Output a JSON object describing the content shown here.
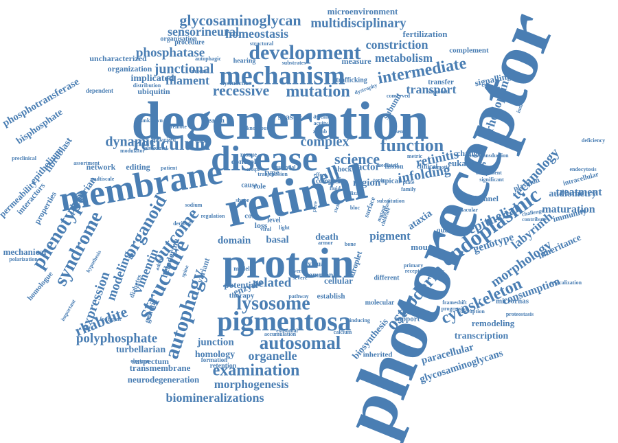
{
  "colors": {
    "word": "#4a7eb3",
    "background": "#ffffff"
  },
  "words": [
    "photoreceptor",
    "degeneration",
    "retinal",
    "protein",
    "membrane",
    "disease",
    "mechanism",
    "endoplasmic",
    "development",
    "pigmentosa",
    "cell",
    "autophagy",
    "structure",
    "lysosome",
    "syndrome",
    "phenotype",
    "cytoskeleton",
    "osteoderm",
    "reticulum",
    "outcome",
    "organoid",
    "function",
    "autosomal",
    "science",
    "mutation",
    "recessive",
    "intermediate",
    "examination",
    "morphology",
    "technology",
    "epithelial",
    "glycosaminoglycan",
    "multidisciplinary",
    "sensorineural",
    "homeostasis",
    "microenvironment",
    "phosphatase",
    "constriction",
    "junctional",
    "metabolism",
    "filament",
    "implicated",
    "transport",
    "retinitis",
    "infolding",
    "complex",
    "dynamic",
    "expression",
    "vimentin",
    "modeling",
    "labyrinth",
    "genotype",
    "rhodopsin",
    "rhabdite",
    "polyphosphate",
    "organelle",
    "pigment",
    "related",
    "morphogenesis",
    "biomineralizations",
    "neurodegeneration",
    "transmembrane",
    "suspectum",
    "turbellarian",
    "junction",
    "homology",
    "biosynthesis",
    "paracellular",
    "glycosaminoglycans",
    "transcription",
    "remodeling",
    "consumption",
    "inheritance",
    "maturation",
    "audiometry",
    "treatment",
    "fertilization",
    "complement",
    "signalling",
    "phosphotransferase",
    "bisphosphate",
    "epithelium",
    "fibroblast",
    "planarian",
    "permeability",
    "interactors",
    "properties",
    "mechanical",
    "homologue",
    "factor",
    "region",
    "ataxia",
    "enzyme",
    "domain",
    "basal",
    "death",
    "mouse",
    "cellular",
    "ubiquitin",
    "organization",
    "uncharacterized",
    "organisation",
    "procedure",
    "structural",
    "hearing",
    "measure",
    "dysfunction",
    "trafficking",
    "transfer",
    "network",
    "editing",
    "patient",
    "control",
    "cone",
    "clinical",
    "macular",
    "visual",
    "common",
    "different",
    "inherited",
    "retention",
    "formation",
    "accumulation",
    "therapy",
    "pathway",
    "molecular",
    "droplet",
    "support",
    "progressive",
    "micrornas",
    "proteostasis",
    "relocalization",
    "endocytosis",
    "intracellular",
    "plasmon",
    "channel",
    "immunity",
    "contribute",
    "challenge",
    "quality",
    "subunit",
    "spastic",
    "acuity",
    "ageing",
    "knockout",
    "shock",
    "fission",
    "apical",
    "type",
    "loss",
    "role",
    "level",
    "viral",
    "light",
    "bloc",
    "pure",
    "cause",
    "complexes",
    "hypothesis",
    "diabetes",
    "genetic",
    "heloderma",
    "important",
    "polarization",
    "electron",
    "variant",
    "model",
    "potential",
    "establish",
    "exosomal",
    "calcium",
    "osmotic",
    "change",
    "eukaryote",
    "phototransduction",
    "deficiency",
    "unknown",
    "remote",
    "search",
    "rescue",
    "crispr",
    "essential",
    "polarized",
    "abnormal",
    "modulator",
    "multiscale",
    "assortment",
    "dependent",
    "distribution",
    "preclinical",
    "yeast",
    "stem",
    "shape",
    "primary",
    "receptor",
    "frameshift",
    "disruption",
    "inducing",
    "severe",
    "several",
    "armor",
    "bone",
    "surface",
    "chloride",
    "increase",
    "mutant",
    "component",
    "significant",
    "individual",
    "conserved",
    "metric",
    "dystrophy",
    "zonab",
    "absence",
    "topic",
    "plate",
    "family",
    "segment",
    "substrates",
    "autophagic",
    "mediated",
    "sodium",
    "derived",
    "mucus",
    "substitution",
    "effect",
    "lizard",
    "fluid",
    "adult",
    "spine",
    "footprint",
    "regulation",
    "transmission",
    "scale",
    "tight"
  ]
}
